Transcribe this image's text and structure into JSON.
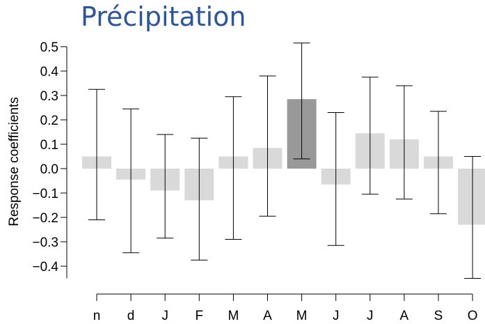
{
  "chart_data": {
    "type": "bar",
    "title": "Précipitation",
    "xlabel": "",
    "ylabel": "Response coefficients",
    "categories": [
      "n",
      "d",
      "J",
      "F",
      "M",
      "A",
      "M",
      "J",
      "J",
      "A",
      "S",
      "O"
    ],
    "series": [
      {
        "values": [
          0.05,
          -0.045,
          -0.09,
          -0.13,
          0.05,
          0.085,
          0.285,
          -0.065,
          0.145,
          0.12,
          0.05,
          -0.23
        ],
        "error_low": [
          -0.21,
          -0.345,
          -0.285,
          -0.375,
          -0.29,
          -0.195,
          0.04,
          -0.315,
          -0.105,
          -0.125,
          -0.185,
          -0.45
        ],
        "error_high": [
          0.325,
          0.245,
          0.14,
          0.125,
          0.295,
          0.38,
          0.515,
          0.23,
          0.375,
          0.34,
          0.235,
          0.05
        ],
        "highlight": [
          false,
          false,
          false,
          false,
          false,
          false,
          true,
          false,
          false,
          false,
          false,
          false
        ]
      }
    ],
    "yticks": [
      "0.5",
      "0.4",
      "0.3",
      "0.2",
      "0.1",
      "0.0",
      "−0.1",
      "−0.2",
      "−0.3",
      "−0.4"
    ],
    "ytick_values": [
      0.5,
      0.4,
      0.3,
      0.2,
      0.1,
      0.0,
      -0.1,
      -0.2,
      -0.3,
      -0.4
    ],
    "ylim": [
      -0.45,
      0.5
    ],
    "grid": false,
    "colors": {
      "bar": "#d9d9d9",
      "highlight": "#999999",
      "errorbar": "#000000",
      "title": "#2f5597"
    }
  }
}
